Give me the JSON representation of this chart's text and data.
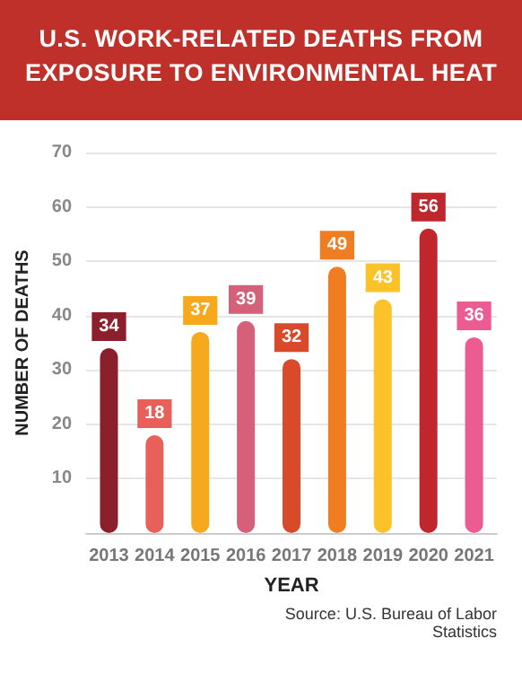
{
  "chart_data": {
    "type": "bar",
    "title": "U.S. WORK-RELATED DEATHS FROM EXPOSURE TO ENVIRONMENTAL HEAT",
    "xlabel": "YEAR",
    "ylabel": "NUMBER OF DEATHS",
    "categories": [
      "2013",
      "2014",
      "2015",
      "2016",
      "2017",
      "2018",
      "2019",
      "2020",
      "2021"
    ],
    "values": [
      34,
      18,
      37,
      39,
      32,
      49,
      43,
      56,
      36
    ],
    "colors": [
      "#8b1f2b",
      "#e8605a",
      "#f7a91e",
      "#d4607a",
      "#d94a2a",
      "#f07d22",
      "#fbc229",
      "#c0272d",
      "#ec5b92"
    ],
    "ylim": [
      0,
      70
    ],
    "yticks": [
      {
        "value": 0,
        "label": null
      },
      10,
      20,
      30,
      40,
      50,
      60,
      70
    ],
    "grid": "y",
    "data_labels": true,
    "annotations": [
      "Source: U.S. Bureau of Labor Statistics"
    ]
  }
}
